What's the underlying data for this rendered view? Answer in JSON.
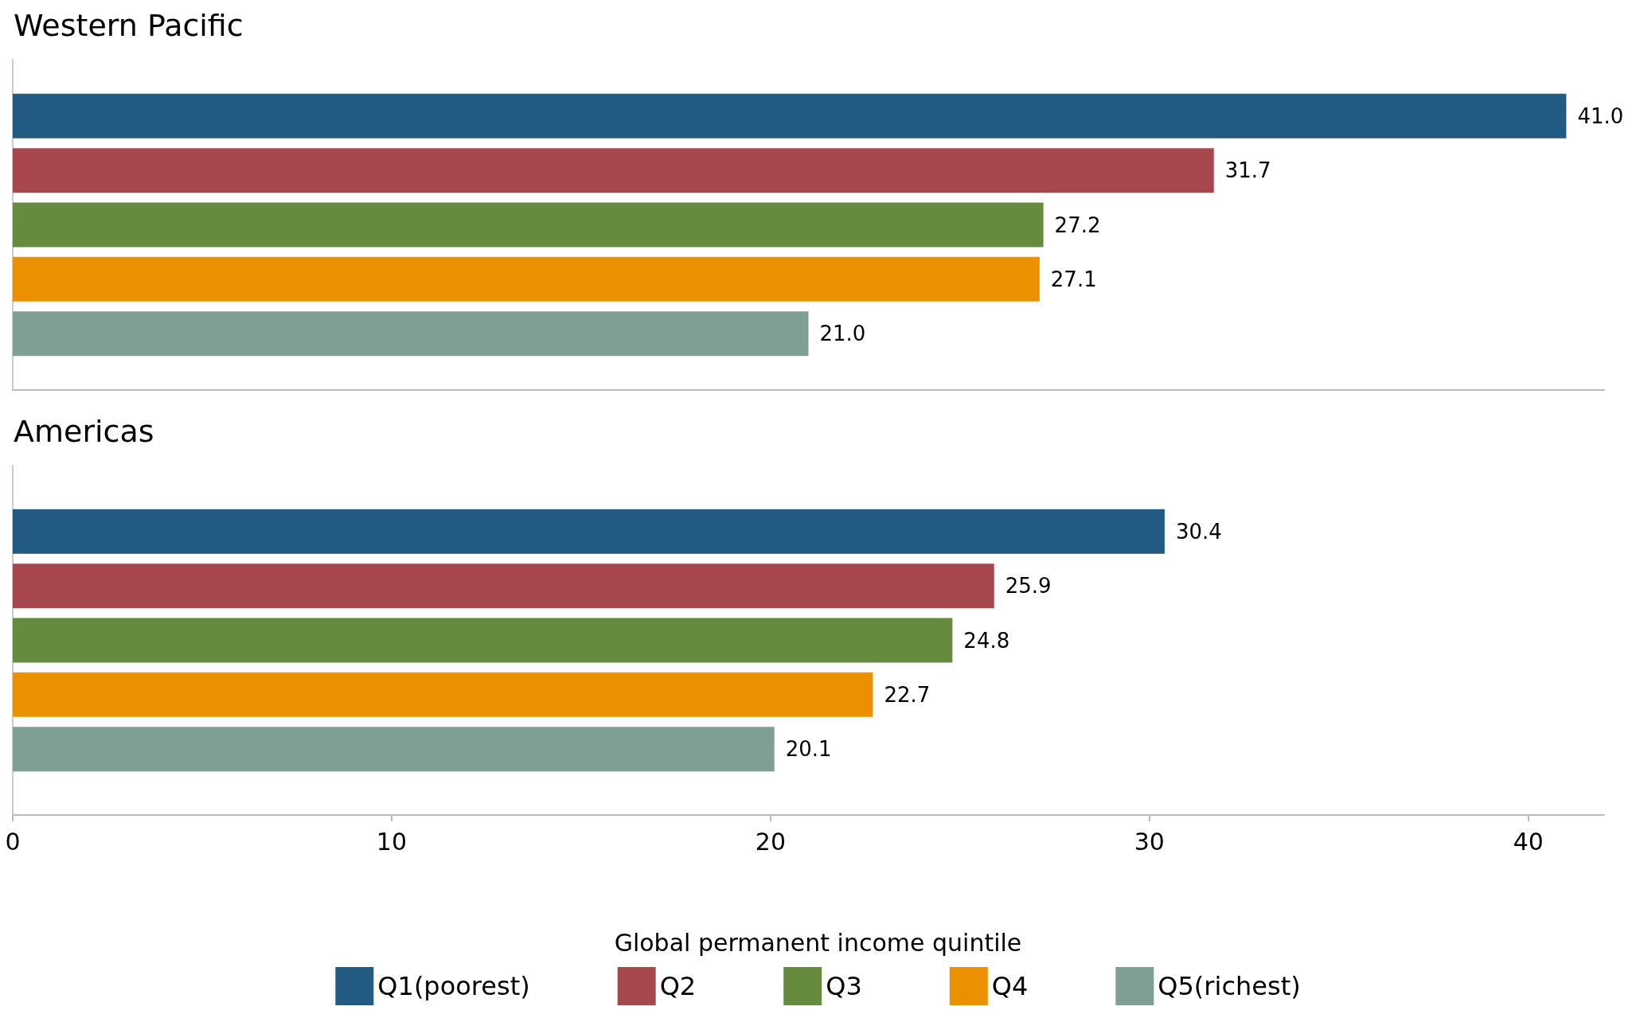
{
  "chart_data": [
    {
      "type": "bar",
      "orientation": "horizontal",
      "title": "Western Pacific",
      "categories": [
        null
      ],
      "xlim": [
        0,
        42
      ],
      "tick_labels": false,
      "grid": false,
      "legend": false,
      "series": [
        {
          "color": "#225a82",
          "values": [
            41.0
          ],
          "value_labels": [
            "41.0"
          ]
        },
        {
          "color": "#a5474c",
          "values": [
            31.7
          ],
          "value_labels": [
            "31.7"
          ]
        },
        {
          "color": "#668a3e",
          "values": [
            27.2
          ],
          "value_labels": [
            "27.2"
          ]
        },
        {
          "color": "#eb9100",
          "values": [
            27.1
          ],
          "value_labels": [
            "27.1"
          ]
        },
        {
          "color": "#7f9f95",
          "values": [
            21.0
          ],
          "value_labels": [
            "21.0"
          ]
        }
      ]
    },
    {
      "type": "bar",
      "orientation": "horizontal",
      "title": "Americas",
      "categories": [
        null
      ],
      "xlim": [
        0,
        42
      ],
      "xticks": [
        0,
        10,
        20,
        30,
        40
      ],
      "tick_labels": "x",
      "grid": false,
      "legend": "bottom",
      "legend_title": "Global permanent income quintile",
      "series": [
        {
          "name": "Q1(poorest)",
          "color": "#225a82",
          "values": [
            30.4
          ],
          "value_labels": [
            "30.4"
          ]
        },
        {
          "name": "Q2",
          "color": "#a5474c",
          "values": [
            25.9
          ],
          "value_labels": [
            "25.9"
          ]
        },
        {
          "name": "Q3",
          "color": "#668a3e",
          "values": [
            24.8
          ],
          "value_labels": [
            "24.8"
          ]
        },
        {
          "name": "Q4",
          "color": "#eb9100",
          "values": [
            22.7
          ],
          "value_labels": [
            "22.7"
          ]
        },
        {
          "name": "Q5(richest)",
          "color": "#7f9f95",
          "values": [
            20.1
          ],
          "value_labels": [
            "20.1"
          ]
        }
      ]
    }
  ]
}
